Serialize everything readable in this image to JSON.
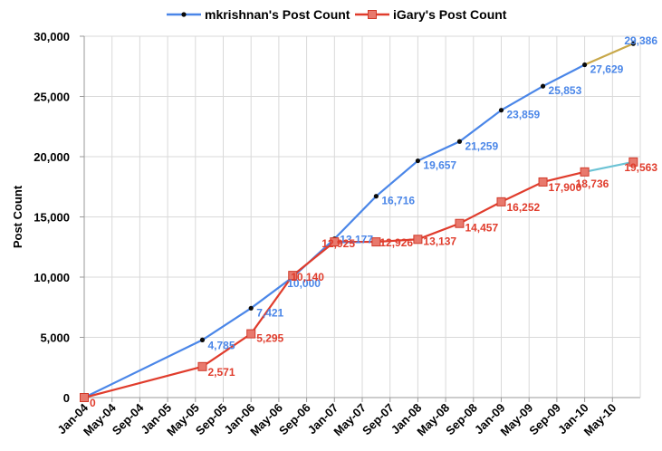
{
  "chart_data": {
    "type": "line",
    "title": "",
    "xlabel": "",
    "ylabel": "Post Count",
    "ylim": [
      0,
      30000
    ],
    "yticks": [
      0,
      5000,
      10000,
      15000,
      20000,
      25000,
      30000
    ],
    "ytick_labels": [
      "0",
      "5,000",
      "10,000",
      "15,000",
      "20,000",
      "25,000",
      "30,000"
    ],
    "xtick_labels": [
      "Jan-04",
      "May-04",
      "Sep-04",
      "Jan-05",
      "May-05",
      "Sep-05",
      "Jan-06",
      "May-06",
      "Sep-06",
      "Jan-07",
      "May-07",
      "Sep-07",
      "Jan-08",
      "May-08",
      "Sep-08",
      "Jan-09",
      "May-09",
      "Sep-09",
      "Jan-10",
      "May-10"
    ],
    "grid": true,
    "legend_position": "top",
    "series": [
      {
        "name": "mkrishnan's Post Count",
        "color": "#4a86e8",
        "marker": "dot",
        "points": [
          {
            "x": "Jan-04",
            "y": 0,
            "label": ""
          },
          {
            "x": "Jun-05",
            "y": 4785,
            "label": "4,785"
          },
          {
            "x": "Jan-06",
            "y": 7421,
            "label": "7,421"
          },
          {
            "x": "Jul-06",
            "y": 10000,
            "label": "10,000"
          },
          {
            "x": "Jan-07",
            "y": 13177,
            "label": "13,177"
          },
          {
            "x": "Jul-07",
            "y": 16716,
            "label": "16,716"
          },
          {
            "x": "Jan-08",
            "y": 19657,
            "label": "19,657"
          },
          {
            "x": "Jul-08",
            "y": 21259,
            "label": "21,259"
          },
          {
            "x": "Jan-09",
            "y": 23859,
            "label": "23,859"
          },
          {
            "x": "Jul-09",
            "y": 25853,
            "label": "25,853"
          },
          {
            "x": "Jan-10",
            "y": 27629,
            "label": "27,629"
          },
          {
            "x": "Aug-10",
            "y": 29386,
            "label": "29,386"
          }
        ]
      },
      {
        "name": "iGary's Post Count",
        "color": "#e03c2c",
        "marker": "square",
        "points": [
          {
            "x": "Jan-04",
            "y": 0,
            "label": "0"
          },
          {
            "x": "Jun-05",
            "y": 2571,
            "label": "2,571"
          },
          {
            "x": "Jan-06",
            "y": 5295,
            "label": "5,295"
          },
          {
            "x": "Jul-06",
            "y": 10140,
            "label": "10,140"
          },
          {
            "x": "Jan-07",
            "y": 12925,
            "label": "12,925"
          },
          {
            "x": "Jul-07",
            "y": 12926,
            "label": "12,926"
          },
          {
            "x": "Jan-08",
            "y": 13137,
            "label": "13,137"
          },
          {
            "x": "Jul-08",
            "y": 14457,
            "label": "14,457"
          },
          {
            "x": "Jan-09",
            "y": 16252,
            "label": "16,252"
          },
          {
            "x": "Jul-09",
            "y": 17900,
            "label": "17,900"
          },
          {
            "x": "Jan-10",
            "y": 18736,
            "label": "18,736"
          },
          {
            "x": "Aug-10",
            "y": 19563,
            "label": "19,563"
          }
        ]
      }
    ],
    "last_segment_colors": [
      "#c8a84a",
      "#6cc3d5"
    ]
  }
}
